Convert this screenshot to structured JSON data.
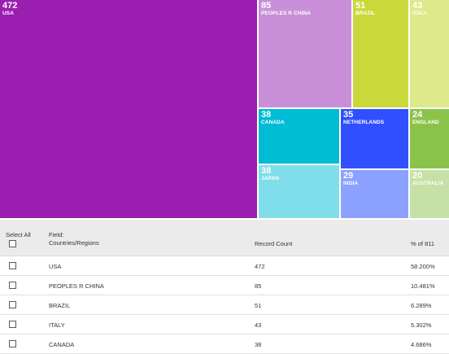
{
  "colors": {
    "usa": "#9a1fb0",
    "china": "#c98fd8",
    "brazil": "#cad939",
    "italy": "#dde98a",
    "canada": "#00bcd4",
    "netherlands": "#304ffe",
    "england": "#8bc34a",
    "japan": "#80deea",
    "india": "#8ca0ff",
    "australia": "#c5e1a5"
  },
  "treemap": {
    "tiles": [
      {
        "value": "472",
        "label": "USA"
      },
      {
        "value": "85",
        "label": "PEOPLES R CHINA"
      },
      {
        "value": "51",
        "label": "BRAZIL"
      },
      {
        "value": "43",
        "label": "ITALY"
      },
      {
        "value": "38",
        "label": "CANADA"
      },
      {
        "value": "35",
        "label": "NETHERLANDS"
      },
      {
        "value": "24",
        "label": "ENGLAND"
      },
      {
        "value": "38",
        "label": "JAPAN"
      },
      {
        "value": "29",
        "label": "INDIA"
      },
      {
        "value": "20",
        "label": "AUSTRALIA"
      }
    ]
  },
  "table": {
    "select_all": "Select All",
    "field_label": "Field:",
    "field_name": "Countries/Regions",
    "record_count_header": "Record Count",
    "percent_header": "% of 811",
    "rows": [
      {
        "name": "USA",
        "count": "472",
        "percent": "58.200%"
      },
      {
        "name": "PEOPLES R CHINA",
        "count": "85",
        "percent": "10.481%"
      },
      {
        "name": "BRAZIL",
        "count": "51",
        "percent": "6.289%"
      },
      {
        "name": "ITALY",
        "count": "43",
        "percent": "5.302%"
      },
      {
        "name": "CANADA",
        "count": "38",
        "percent": "4.686%"
      }
    ]
  }
}
